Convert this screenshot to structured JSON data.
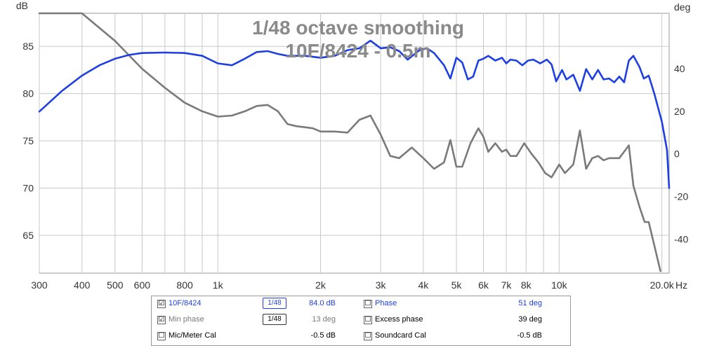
{
  "chart_data": {
    "type": "line",
    "title": "1/48 octave smoothing",
    "subtitle": "10F/8424 - 0.5m",
    "ylabel_left": "dB",
    "ylabel_right": "deg",
    "xlabel": "Hz",
    "x_scale": "log",
    "xlim": [
      300,
      21000
    ],
    "ylim_left": [
      61,
      88.5
    ],
    "ylim_right": [
      -56,
      66
    ],
    "x_ticks": [
      300,
      400,
      500,
      600,
      800,
      1000,
      2000,
      3000,
      4000,
      5000,
      6000,
      7000,
      8000,
      10000,
      20000
    ],
    "x_tick_labels": [
      "300",
      "400",
      "500",
      "600",
      "800",
      "1k",
      "2k",
      "3k",
      "4k",
      "5k",
      "6k",
      "7k",
      "8k",
      "10k",
      "20.0k"
    ],
    "y_ticks_left": [
      65,
      70,
      75,
      80,
      85
    ],
    "y_ticks_right": [
      -40,
      -20,
      0,
      20,
      40
    ],
    "grid": true,
    "series": [
      {
        "name": "10F/8424",
        "axis": "left",
        "color": "#1f3fe0",
        "points": [
          [
            300,
            78.1
          ],
          [
            350,
            80.3
          ],
          [
            400,
            81.9
          ],
          [
            450,
            83.0
          ],
          [
            500,
            83.7
          ],
          [
            550,
            84.1
          ],
          [
            600,
            84.3
          ],
          [
            700,
            84.35
          ],
          [
            800,
            84.3
          ],
          [
            900,
            84.0
          ],
          [
            1000,
            83.2
          ],
          [
            1100,
            83.0
          ],
          [
            1200,
            83.7
          ],
          [
            1300,
            84.4
          ],
          [
            1400,
            84.5
          ],
          [
            1500,
            84.2
          ],
          [
            1600,
            84.0
          ],
          [
            1800,
            84.0
          ],
          [
            2000,
            83.8
          ],
          [
            2200,
            84.0
          ],
          [
            2400,
            84.6
          ],
          [
            2600,
            84.8
          ],
          [
            2800,
            85.6
          ],
          [
            3000,
            84.8
          ],
          [
            3200,
            84.9
          ],
          [
            3400,
            84.5
          ],
          [
            3600,
            83.6
          ],
          [
            3900,
            84.6
          ],
          [
            4100,
            84.8
          ],
          [
            4300,
            84.3
          ],
          [
            4600,
            83.0
          ],
          [
            4800,
            81.6
          ],
          [
            5000,
            83.8
          ],
          [
            5200,
            83.3
          ],
          [
            5400,
            81.5
          ],
          [
            5600,
            81.8
          ],
          [
            5800,
            83.5
          ],
          [
            6000,
            83.7
          ],
          [
            6200,
            84.0
          ],
          [
            6500,
            83.5
          ],
          [
            6800,
            83.8
          ],
          [
            7000,
            83.2
          ],
          [
            7200,
            83.6
          ],
          [
            7500,
            83.5
          ],
          [
            7800,
            83.0
          ],
          [
            8100,
            83.5
          ],
          [
            8400,
            83.6
          ],
          [
            8800,
            83.2
          ],
          [
            9200,
            83.6
          ],
          [
            9500,
            83.1
          ],
          [
            9800,
            81.3
          ],
          [
            10200,
            82.5
          ],
          [
            10500,
            81.5
          ],
          [
            11000,
            82.0
          ],
          [
            11500,
            80.3
          ],
          [
            12000,
            82.6
          ],
          [
            12500,
            81.5
          ],
          [
            13000,
            82.5
          ],
          [
            13500,
            81.5
          ],
          [
            14000,
            81.6
          ],
          [
            14500,
            81.2
          ],
          [
            15000,
            81.8
          ],
          [
            15500,
            81.2
          ],
          [
            16000,
            83.5
          ],
          [
            16500,
            84.0
          ],
          [
            17200,
            82.8
          ],
          [
            17700,
            81.6
          ],
          [
            18300,
            81.9
          ],
          [
            19000,
            80.0
          ],
          [
            20000,
            77.0
          ],
          [
            20700,
            74.0
          ],
          [
            21000,
            70.0
          ]
        ]
      },
      {
        "name": "Min phase",
        "axis": "right",
        "color": "#7a7a7a",
        "points": [
          [
            300,
            80
          ],
          [
            400,
            68
          ],
          [
            500,
            53
          ],
          [
            600,
            40
          ],
          [
            700,
            31
          ],
          [
            800,
            24
          ],
          [
            900,
            20
          ],
          [
            1000,
            17.5
          ],
          [
            1100,
            18
          ],
          [
            1200,
            20
          ],
          [
            1300,
            22.5
          ],
          [
            1400,
            23
          ],
          [
            1500,
            20
          ],
          [
            1600,
            14
          ],
          [
            1700,
            13
          ],
          [
            1800,
            12.5
          ],
          [
            1900,
            12
          ],
          [
            2000,
            10.5
          ],
          [
            2200,
            10.5
          ],
          [
            2400,
            10
          ],
          [
            2600,
            16
          ],
          [
            2800,
            18
          ],
          [
            3000,
            9
          ],
          [
            3200,
            -1
          ],
          [
            3400,
            -2
          ],
          [
            3700,
            3
          ],
          [
            4000,
            -2
          ],
          [
            4300,
            -7
          ],
          [
            4600,
            -4
          ],
          [
            4800,
            6.5
          ],
          [
            5000,
            -6
          ],
          [
            5200,
            -6
          ],
          [
            5500,
            5
          ],
          [
            5800,
            12
          ],
          [
            6000,
            8
          ],
          [
            6200,
            1
          ],
          [
            6500,
            5
          ],
          [
            6800,
            1
          ],
          [
            7000,
            2
          ],
          [
            7200,
            -1
          ],
          [
            7500,
            -1
          ],
          [
            7900,
            5
          ],
          [
            8300,
            0
          ],
          [
            8700,
            -4
          ],
          [
            9100,
            -9
          ],
          [
            9500,
            -11
          ],
          [
            10000,
            -5
          ],
          [
            10400,
            -9
          ],
          [
            11000,
            -5
          ],
          [
            11500,
            11
          ],
          [
            12000,
            -7
          ],
          [
            12500,
            -2
          ],
          [
            13000,
            -1
          ],
          [
            13500,
            -3
          ],
          [
            14000,
            -2
          ],
          [
            15000,
            -2
          ],
          [
            16000,
            4
          ],
          [
            16500,
            -15
          ],
          [
            17200,
            -25
          ],
          [
            17800,
            -32
          ],
          [
            18300,
            -32
          ],
          [
            19000,
            -43
          ],
          [
            19800,
            -55
          ]
        ]
      }
    ],
    "legend": {
      "placement": "bottom",
      "rows": [
        {
          "left_check": "☑",
          "left_label": "10F/8424",
          "left_smooth": "1/48",
          "left_value": "84.0 dB",
          "right_check": "☐",
          "right_label": "Phase",
          "right_value": "51 deg"
        },
        {
          "left_check": "☑",
          "left_label": "Min phase",
          "left_smooth": "1/48",
          "left_value": "13 deg",
          "right_check": "☐",
          "right_label": "Excess phase",
          "right_value": "39 deg"
        },
        {
          "left_check": "☐",
          "left_label": "Mic/Meter Cal",
          "left_smooth": "",
          "left_value": "-0.5 dB",
          "right_check": "☐",
          "right_label": "Soundcard Cal",
          "right_value": "-0.5 dB"
        }
      ]
    }
  }
}
